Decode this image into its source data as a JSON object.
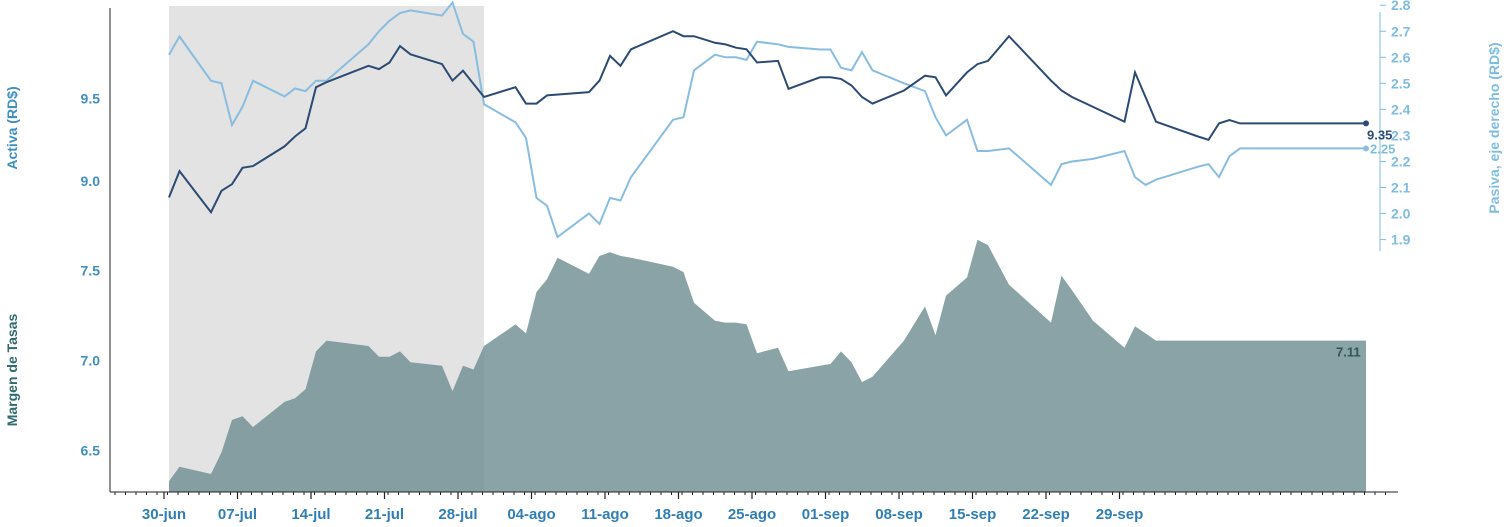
{
  "chart_data": {
    "type": "line",
    "x_ticks": [
      "30-jun",
      "07-jul",
      "14-jul",
      "21-jul",
      "28-jul",
      "04-ago",
      "11-ago",
      "18-ago",
      "25-ago",
      "01-sep",
      "08-sep",
      "15-sep",
      "22-sep",
      "29-sep"
    ],
    "axis_labels": {
      "left": "Activa (RD$)",
      "right": "Pasiva, eje derecho (RD$)",
      "lower_left": "Margen de Tasas"
    },
    "left_ticks": [
      "9.0",
      "9.5"
    ],
    "right_ticks": [
      "1.9",
      "2.0",
      "2.1",
      "2.2",
      "2.3",
      "2.4",
      "2.5",
      "2.6",
      "2.7",
      "2.8"
    ],
    "margin_ticks": [
      "6.5",
      "7.0",
      "7.5"
    ],
    "ylim_activa": [
      8.58,
      10.1
    ],
    "ylim_pasiva": [
      1.86,
      2.82
    ],
    "ylim_margen": [
      6.27,
      9.0
    ],
    "shaded_region": {
      "from_day": 0,
      "to_day": 30
    },
    "colors": {
      "activa": "#2b4b73",
      "pasiva": "#88bde0",
      "margen": "#6f8f93",
      "shade": "#e3e3e3",
      "axis": "#222222"
    },
    "end_labels": {
      "activa": "9.35",
      "pasiva": "2.25",
      "margen": "7.11"
    },
    "series": [
      {
        "key": "activa",
        "x": [
          0,
          1,
          4,
          5,
          6,
          7,
          8,
          11,
          12,
          13,
          14,
          15,
          19,
          20,
          21,
          22,
          23,
          26,
          27,
          28,
          30,
          33,
          34,
          35,
          36,
          40,
          41,
          42,
          43,
          44,
          48,
          49,
          50,
          52,
          53,
          54,
          55,
          56,
          58,
          59,
          62,
          63,
          64,
          65,
          66,
          67,
          70,
          72,
          73,
          74,
          76,
          77,
          78,
          80,
          84,
          85,
          86,
          88,
          91,
          92,
          93,
          94,
          98,
          99,
          100,
          101,
          102,
          103,
          104,
          105,
          106,
          109,
          110,
          111,
          112,
          113,
          114
        ],
        "y": [
          8.9,
          9.06,
          8.81,
          8.94,
          8.98,
          9.08,
          9.09,
          9.21,
          9.27,
          9.32,
          9.57,
          9.6,
          9.7,
          9.68,
          9.72,
          9.82,
          9.77,
          9.71,
          9.61,
          9.67,
          9.51,
          9.57,
          9.47,
          9.47,
          9.52,
          9.54,
          9.61,
          9.76,
          9.7,
          9.8,
          9.91,
          9.88,
          9.88,
          9.84,
          9.83,
          9.81,
          9.8,
          9.72,
          9.73,
          9.56,
          9.63,
          9.63,
          9.62,
          9.58,
          9.51,
          9.47,
          9.55,
          9.64,
          9.63,
          9.52,
          9.66,
          9.71,
          9.73,
          9.88,
          9.61,
          9.55,
          9.51,
          9.45,
          9.36,
          9.66,
          9.51,
          9.36,
          9.27,
          9.25,
          9.35,
          9.37,
          9.35,
          9.35,
          9.35,
          9.35,
          9.35,
          9.35,
          9.35,
          9.35,
          9.35,
          9.35,
          9.35
        ]
      },
      {
        "key": "pasiva",
        "x": [
          0,
          1,
          4,
          5,
          6,
          7,
          8,
          11,
          12,
          13,
          14,
          15,
          19,
          20,
          21,
          22,
          23,
          26,
          27,
          28,
          29,
          30,
          33,
          34,
          35,
          36,
          37,
          40,
          41,
          42,
          43,
          44,
          48,
          49,
          50,
          52,
          53,
          54,
          55,
          56,
          58,
          59,
          62,
          63,
          64,
          65,
          66,
          67,
          70,
          72,
          73,
          74,
          76,
          77,
          78,
          80,
          84,
          85,
          86,
          88,
          91,
          92,
          93,
          94,
          98,
          99,
          100,
          101,
          102,
          103,
          104,
          105,
          106,
          109,
          110,
          111,
          112,
          113,
          114
        ],
        "y": [
          2.61,
          2.68,
          2.51,
          2.5,
          2.34,
          2.41,
          2.51,
          2.45,
          2.48,
          2.47,
          2.51,
          2.51,
          2.65,
          2.7,
          2.74,
          2.77,
          2.78,
          2.76,
          2.81,
          2.69,
          2.66,
          2.42,
          2.35,
          2.29,
          2.06,
          2.03,
          1.91,
          2.0,
          1.96,
          2.06,
          2.05,
          2.14,
          2.36,
          2.37,
          2.55,
          2.61,
          2.6,
          2.6,
          2.59,
          2.66,
          2.65,
          2.64,
          2.63,
          2.63,
          2.56,
          2.55,
          2.62,
          2.55,
          2.5,
          2.47,
          2.37,
          2.3,
          2.36,
          2.24,
          2.24,
          2.25,
          2.11,
          2.19,
          2.2,
          2.21,
          2.24,
          2.14,
          2.11,
          2.13,
          2.18,
          2.19,
          2.14,
          2.22,
          2.25,
          2.25,
          2.25,
          2.25,
          2.25,
          2.25,
          2.25,
          2.25,
          2.25,
          2.25,
          2.25
        ]
      },
      {
        "key": "margen",
        "x": [
          0,
          1,
          4,
          5,
          6,
          7,
          8,
          11,
          12,
          13,
          14,
          15,
          19,
          20,
          21,
          22,
          23,
          26,
          27,
          28,
          29,
          30,
          33,
          34,
          35,
          36,
          37,
          40,
          41,
          42,
          43,
          44,
          48,
          49,
          50,
          52,
          53,
          54,
          55,
          56,
          58,
          59,
          62,
          63,
          64,
          65,
          66,
          67,
          70,
          72,
          73,
          74,
          76,
          77,
          78,
          80,
          84,
          85,
          86,
          88,
          91,
          92,
          93,
          94,
          98,
          99,
          100,
          101,
          102,
          103,
          104,
          105,
          106,
          109,
          110,
          111,
          112,
          113,
          114
        ],
        "y": [
          6.33,
          6.41,
          6.37,
          6.49,
          6.67,
          6.69,
          6.63,
          6.77,
          6.79,
          6.84,
          7.05,
          7.11,
          7.08,
          7.02,
          7.02,
          7.05,
          6.99,
          6.97,
          6.83,
          6.97,
          6.95,
          7.08,
          7.2,
          7.15,
          7.38,
          7.45,
          7.57,
          7.48,
          7.58,
          7.6,
          7.58,
          7.57,
          7.52,
          7.49,
          7.32,
          7.22,
          7.21,
          7.21,
          7.2,
          7.04,
          7.07,
          6.94,
          6.97,
          6.98,
          7.05,
          6.99,
          6.88,
          6.91,
          7.11,
          7.3,
          7.14,
          7.36,
          7.46,
          7.67,
          7.64,
          7.42,
          7.21,
          7.47,
          7.39,
          7.22,
          7.07,
          7.19,
          7.15,
          7.11,
          7.11,
          7.11,
          7.11,
          7.11,
          7.11,
          7.11,
          7.11,
          7.11,
          7.11,
          7.11,
          7.11,
          7.11,
          7.11,
          7.11,
          7.11
        ]
      }
    ]
  }
}
